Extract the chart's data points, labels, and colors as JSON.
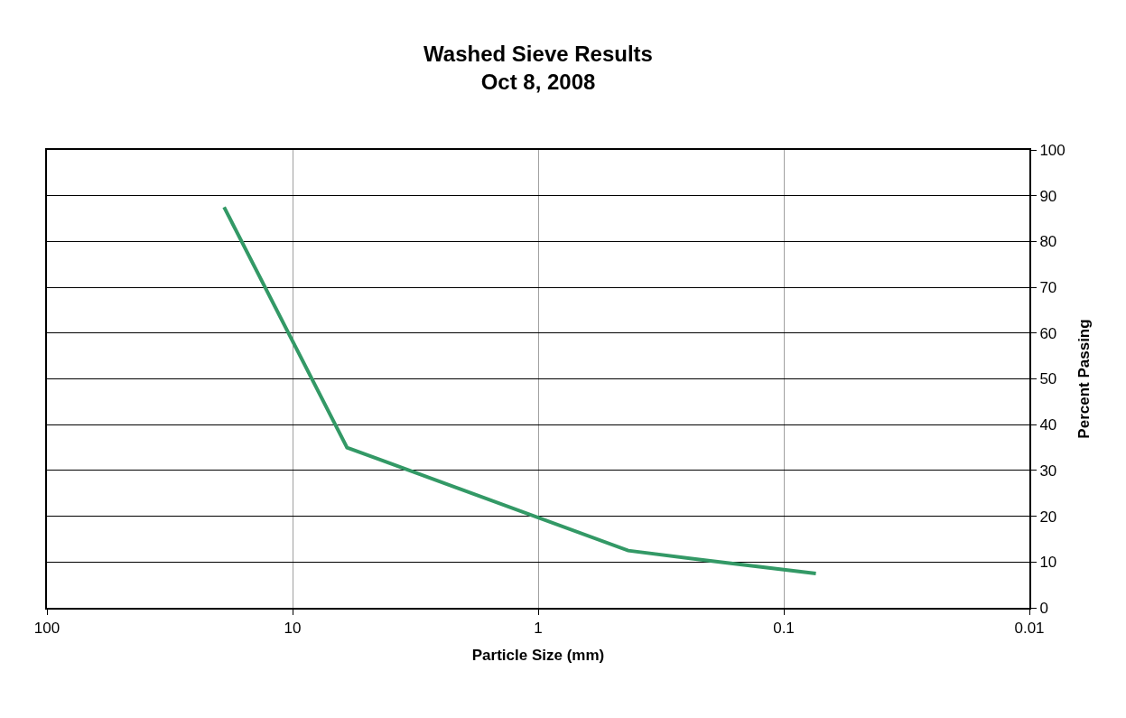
{
  "chart_data": {
    "type": "line",
    "title": "Washed Sieve Results\nOct 8, 2008",
    "xlabel": "Particle Size (mm)",
    "ylabel": "Percent Passing",
    "log": "x",
    "xlim": [
      100,
      0.01
    ],
    "xticks": [
      100,
      10,
      1,
      0.1,
      0.01
    ],
    "ylim": [
      0,
      100
    ],
    "yticks": [
      0,
      10,
      20,
      30,
      40,
      50,
      60,
      70,
      80,
      90,
      100
    ],
    "grid": true,
    "marker": "none",
    "line_style": "solid",
    "series": [
      {
        "color": "#339966",
        "x": [
          19,
          6,
          0.43,
          0.17,
          0.074
        ],
        "values": [
          87.5,
          35,
          12.5,
          9.8,
          7.5
        ]
      }
    ]
  }
}
